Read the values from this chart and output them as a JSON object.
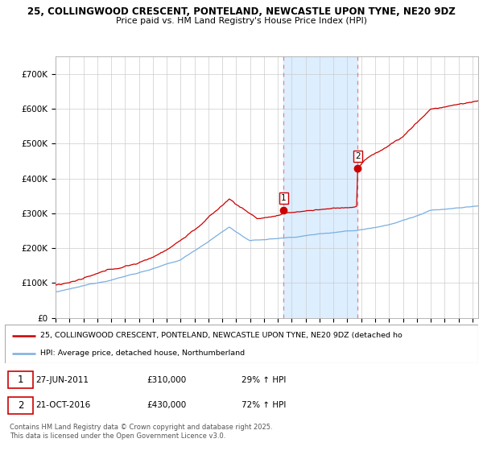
{
  "title1": "25, COLLINGWOOD CRESCENT, PONTELAND, NEWCASTLE UPON TYNE, NE20 9DZ",
  "title2": "Price paid vs. HM Land Registry's House Price Index (HPI)",
  "ylim": [
    0,
    750000
  ],
  "yticks": [
    0,
    100000,
    200000,
    300000,
    400000,
    500000,
    600000,
    700000
  ],
  "hpi_color": "#7aafe0",
  "price_color": "#cc0000",
  "vline_color": "#e88080",
  "span_color": "#ddeeff",
  "marker1_price": 310000,
  "marker2_price": 430000,
  "legend_line1": "25, COLLINGWOOD CRESCENT, PONTELAND, NEWCASTLE UPON TYNE, NE20 9DZ (detached ho",
  "legend_line2": "HPI: Average price, detached house, Northumberland",
  "copyright": "Contains HM Land Registry data © Crown copyright and database right 2025.\nThis data is licensed under the Open Government Licence v3.0.",
  "grid_color": "#cccccc",
  "x_start_year": 1995,
  "x_end_year": 2025,
  "n_months": 366
}
